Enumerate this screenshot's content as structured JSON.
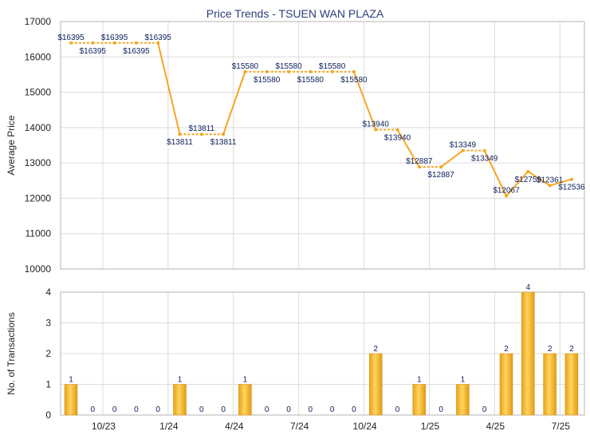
{
  "chart_data": [
    {
      "type": "line",
      "title": "Price Trends - TSUEN WAN PLAZA",
      "ylabel": "Average Price",
      "ylim": [
        10000,
        17000
      ],
      "yticks": [
        "10000",
        "11000",
        "12000",
        "13000",
        "14000",
        "15000",
        "16000",
        "17000"
      ],
      "grid": true,
      "color": "#f5a623",
      "series": [
        {
          "values": [
            16395,
            16395,
            16395,
            16395,
            16395,
            13811,
            13811,
            13811,
            15580,
            15580,
            15580,
            15580,
            15580,
            15580,
            13940,
            13940,
            12887,
            12887,
            13349,
            13349,
            12067,
            12759,
            12361,
            12536
          ],
          "labels": [
            "$16395",
            "$16395",
            "$16395",
            "$16395",
            "$16395",
            "$13811",
            "$13811",
            "$13811",
            "$15580",
            "$15580",
            "$15580",
            "$15580",
            "$15580",
            "$15580",
            "$13940",
            "$13940",
            "$12887",
            "$12887",
            "$13349",
            "$13349",
            "$12067",
            "$12759",
            "$12361",
            "$12536"
          ]
        }
      ]
    },
    {
      "type": "bar",
      "ylabel": "No. of Transactions",
      "ylim": [
        0,
        4
      ],
      "yticks": [
        "0",
        "1",
        "2",
        "3",
        "4"
      ],
      "xticks": [
        "10/23",
        "1/24",
        "4/24",
        "7/24",
        "10/24",
        "1/25",
        "4/25",
        "7/25"
      ],
      "grid": true,
      "color": "#f0b030",
      "values": [
        1,
        0,
        0,
        0,
        0,
        1,
        0,
        0,
        1,
        0,
        0,
        0,
        0,
        0,
        2,
        0,
        1,
        0,
        1,
        0,
        2,
        4,
        2,
        2
      ],
      "labels": [
        "1",
        "0",
        "0",
        "0",
        "0",
        "1",
        "0",
        "0",
        "1",
        "0",
        "0",
        "0",
        "0",
        "0",
        "2",
        "0",
        "1",
        "0",
        "1",
        "0",
        "2",
        "4",
        "2",
        "2"
      ]
    }
  ]
}
